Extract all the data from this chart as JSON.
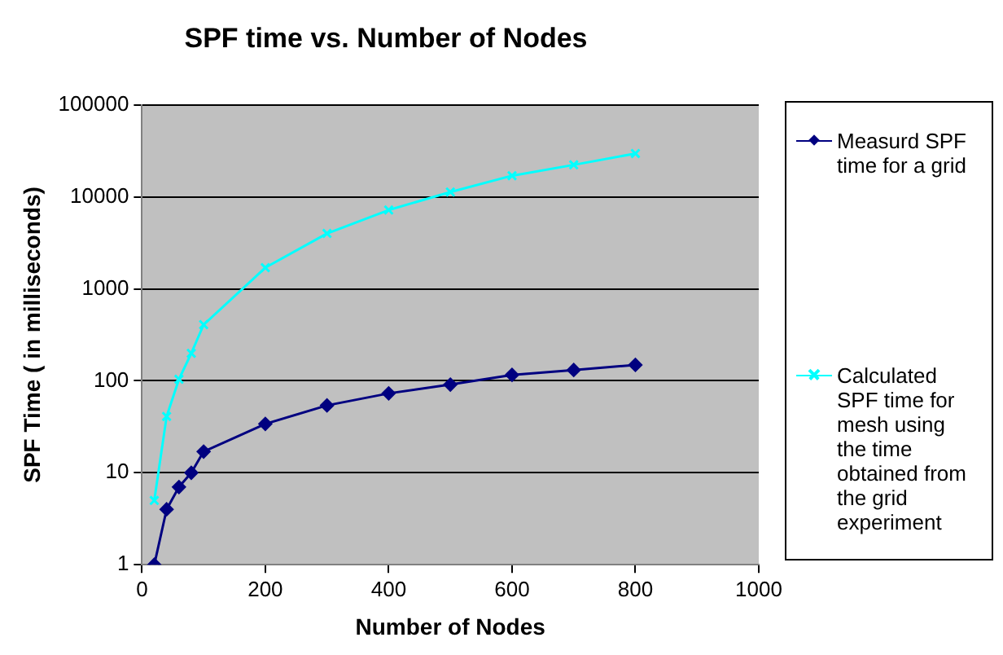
{
  "chart_data": {
    "type": "line",
    "title": "SPF time vs. Number of Nodes",
    "xlabel": "Number of Nodes",
    "ylabel": "SPF Time ( in milliseconds)",
    "xlim": [
      0,
      1000
    ],
    "xticks": [
      0,
      200,
      400,
      600,
      800,
      1000
    ],
    "ylim": [
      1,
      100000
    ],
    "yticks": [
      1,
      10,
      100,
      1000,
      10000,
      100000
    ],
    "log": "y",
    "grid": "y",
    "legend": "right",
    "series": [
      {
        "name": "Measurd SPF time for a grid",
        "color": "#000080",
        "marker": "diamond",
        "x": [
          20,
          40,
          60,
          80,
          100,
          200,
          300,
          400,
          500,
          600,
          700,
          800
        ],
        "values": [
          1,
          4,
          7,
          10,
          17,
          34,
          54,
          73,
          91,
          116,
          131,
          149
        ]
      },
      {
        "name": "Calculated SPF time for mesh using the time obtained from the grid experiment",
        "color": "#00ffff",
        "marker": "cross",
        "x": [
          20,
          40,
          60,
          80,
          100,
          200,
          300,
          400,
          500,
          600,
          700,
          800
        ],
        "values": [
          5,
          41,
          104,
          199,
          408,
          1700,
          4000,
          7200,
          11300,
          17000,
          22300,
          29600
        ]
      }
    ]
  }
}
